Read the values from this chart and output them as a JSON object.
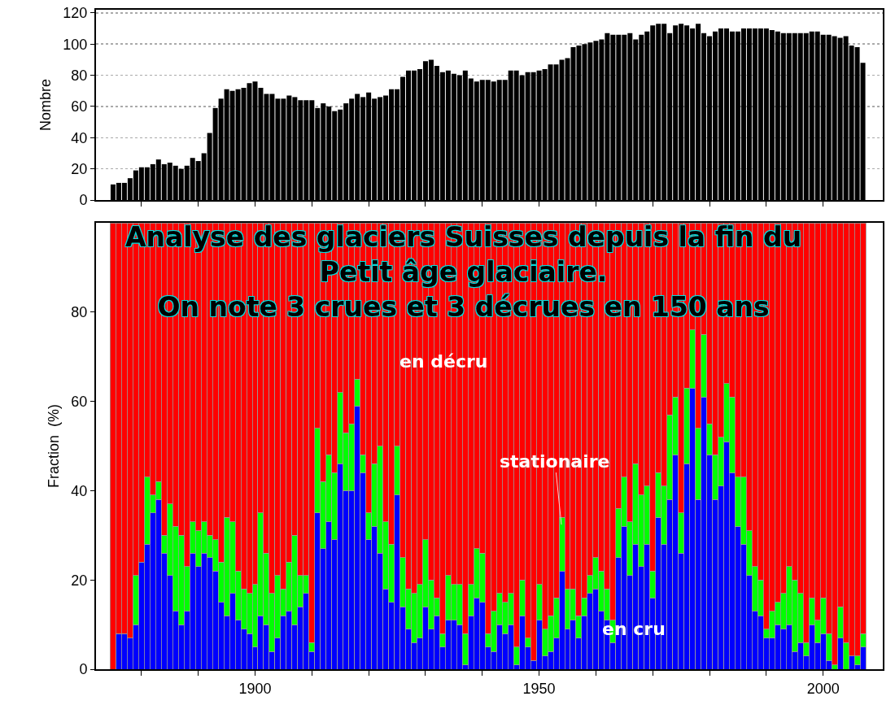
{
  "chart_data": [
    {
      "type": "bar",
      "ylabel": "Nombre",
      "x": [
        1875,
        1876,
        1877,
        1878,
        1879,
        1880,
        1881,
        1882,
        1883,
        1884,
        1885,
        1886,
        1887,
        1888,
        1889,
        1890,
        1891,
        1892,
        1893,
        1894,
        1895,
        1896,
        1897,
        1898,
        1899,
        1900,
        1901,
        1902,
        1903,
        1904,
        1905,
        1906,
        1907,
        1908,
        1909,
        1910,
        1911,
        1912,
        1913,
        1914,
        1915,
        1916,
        1917,
        1918,
        1919,
        1920,
        1921,
        1922,
        1923,
        1924,
        1925,
        1926,
        1927,
        1928,
        1929,
        1930,
        1931,
        1932,
        1933,
        1934,
        1935,
        1936,
        1937,
        1938,
        1939,
        1940,
        1941,
        1942,
        1943,
        1944,
        1945,
        1946,
        1947,
        1948,
        1949,
        1950,
        1951,
        1952,
        1953,
        1954,
        1955,
        1956,
        1957,
        1958,
        1959,
        1960,
        1961,
        1962,
        1963,
        1964,
        1965,
        1966,
        1967,
        1968,
        1969,
        1970,
        1971,
        1972,
        1973,
        1974,
        1975,
        1976,
        1977,
        1978,
        1979,
        1980,
        1981,
        1982,
        1983,
        1984,
        1985,
        1986,
        1987,
        1988,
        1989,
        1990,
        1991,
        1992,
        1993,
        1994,
        1995,
        1996,
        1997,
        1998,
        1999,
        2000,
        2001,
        2002,
        2003,
        2004,
        2005,
        2006,
        2007
      ],
      "values": [
        10,
        11,
        11,
        14,
        19,
        21,
        21,
        23,
        26,
        23,
        24,
        22,
        20,
        22,
        27,
        25,
        30,
        43,
        59,
        65,
        71,
        70,
        71,
        72,
        75,
        76,
        72,
        68,
        68,
        65,
        65,
        67,
        66,
        64,
        64,
        64,
        59,
        62,
        60,
        57,
        58,
        62,
        65,
        68,
        66,
        69,
        65,
        66,
        67,
        71,
        71,
        79,
        83,
        83,
        84,
        89,
        90,
        86,
        82,
        83,
        81,
        80,
        83,
        78,
        76,
        77,
        77,
        76,
        77,
        77,
        83,
        83,
        80,
        82,
        82,
        83,
        84,
        87,
        87,
        90,
        91,
        98,
        99,
        100,
        101,
        102,
        103,
        107,
        106,
        106,
        106,
        107,
        103,
        106,
        108,
        112,
        113,
        113,
        107,
        112,
        113,
        112,
        110,
        113,
        107,
        105,
        108,
        110,
        110,
        108,
        108,
        110,
        110,
        110,
        110,
        110,
        109,
        108,
        107,
        107,
        107,
        107,
        107,
        108,
        108,
        106,
        106,
        105,
        104,
        105,
        99,
        98,
        88
      ],
      "color": "#000000",
      "xlim": [
        1872,
        2010.5
      ],
      "ylim": [
        0,
        122
      ],
      "yticks": [
        0,
        20,
        40,
        60,
        80,
        100,
        120
      ],
      "xticks": [
        {
          "value": 1880,
          "label": null
        },
        {
          "value": 1890,
          "label": null
        },
        {
          "value": 1900,
          "label": null
        },
        {
          "value": 1910,
          "label": null
        },
        {
          "value": 1920,
          "label": null
        },
        {
          "value": 1930,
          "label": null
        },
        {
          "value": 1940,
          "label": null
        },
        {
          "value": 1950,
          "label": null
        },
        {
          "value": 1960,
          "label": null
        },
        {
          "value": 1970,
          "label": null
        },
        {
          "value": 1980,
          "label": null
        },
        {
          "value": 1990,
          "label": null
        },
        {
          "value": 2000,
          "label": null
        }
      ],
      "tick_labels": "y",
      "grid": "y"
    },
    {
      "type": "bar",
      "stacked": true,
      "title": "Analyse des glaciers Suisses depuis la fin du\nPetit âge glaciaire.\nOn note 3 crues et 3 décrues en 150 ans",
      "ylabel": "Fraction  (%)",
      "x": [
        1875,
        1876,
        1877,
        1878,
        1879,
        1880,
        1881,
        1882,
        1883,
        1884,
        1885,
        1886,
        1887,
        1888,
        1889,
        1890,
        1891,
        1892,
        1893,
        1894,
        1895,
        1896,
        1897,
        1898,
        1899,
        1900,
        1901,
        1902,
        1903,
        1904,
        1905,
        1906,
        1907,
        1908,
        1909,
        1910,
        1911,
        1912,
        1913,
        1914,
        1915,
        1916,
        1917,
        1918,
        1919,
        1920,
        1921,
        1922,
        1923,
        1924,
        1925,
        1926,
        1927,
        1928,
        1929,
        1930,
        1931,
        1932,
        1933,
        1934,
        1935,
        1936,
        1937,
        1938,
        1939,
        1940,
        1941,
        1942,
        1943,
        1944,
        1945,
        1946,
        1947,
        1948,
        1949,
        1950,
        1951,
        1952,
        1953,
        1954,
        1955,
        1956,
        1957,
        1958,
        1959,
        1960,
        1961,
        1962,
        1963,
        1964,
        1965,
        1966,
        1967,
        1968,
        1969,
        1970,
        1971,
        1972,
        1973,
        1974,
        1975,
        1976,
        1977,
        1978,
        1979,
        1980,
        1981,
        1982,
        1983,
        1984,
        1985,
        1986,
        1987,
        1988,
        1989,
        1990,
        1991,
        1992,
        1993,
        1994,
        1995,
        1996,
        1997,
        1998,
        1999,
        2000,
        2001,
        2002,
        2003,
        2004,
        2005,
        2006,
        2007
      ],
      "series": [
        {
          "name": "en cru",
          "color": "#0000ff",
          "values": [
            0,
            8,
            8,
            7,
            10,
            24,
            28,
            35,
            38,
            26,
            21,
            13,
            10,
            13,
            26,
            23,
            26,
            25,
            22,
            15,
            12,
            17,
            11,
            9,
            8,
            5,
            12,
            10,
            4,
            7,
            12,
            13,
            10,
            14,
            17,
            4,
            35,
            27,
            33,
            29,
            46,
            40,
            40,
            59,
            44,
            29,
            32,
            26,
            18,
            15,
            39,
            14,
            9,
            6,
            7,
            14,
            9,
            12,
            5,
            11,
            11,
            10,
            1,
            12,
            16,
            15,
            5,
            4,
            10,
            8,
            10,
            1,
            12,
            5,
            2,
            11,
            3,
            4,
            7,
            22,
            9,
            11,
            7,
            12,
            17,
            18,
            13,
            11,
            6,
            25,
            32,
            21,
            28,
            23,
            28,
            16,
            34,
            28,
            38,
            48,
            26,
            46,
            63,
            38,
            61,
            48,
            38,
            41,
            51,
            44,
            32,
            28,
            21,
            13,
            12,
            7,
            7,
            10,
            9,
            10,
            4,
            6,
            3,
            10,
            6,
            8,
            2,
            0,
            7,
            0,
            3,
            1,
            5
          ]
        },
        {
          "name": "stationaire",
          "color": "#00ff00",
          "values": [
            0,
            0,
            0,
            0,
            11,
            0,
            15,
            4,
            4,
            4,
            16,
            19,
            20,
            10,
            7,
            8,
            7,
            5,
            7,
            9,
            22,
            16,
            11,
            9,
            9,
            14,
            23,
            16,
            13,
            14,
            6,
            11,
            20,
            7,
            4,
            2,
            19,
            15,
            15,
            15,
            16,
            13,
            15,
            6,
            4,
            6,
            14,
            24,
            15,
            13,
            11,
            11,
            9,
            11,
            12,
            15,
            11,
            4,
            3,
            10,
            8,
            9,
            7,
            7,
            11,
            11,
            3,
            9,
            7,
            7,
            7,
            4,
            8,
            2,
            0,
            8,
            6,
            8,
            9,
            12,
            9,
            7,
            5,
            4,
            4,
            7,
            9,
            7,
            5,
            11,
            11,
            12,
            18,
            16,
            13,
            6,
            10,
            13,
            19,
            13,
            9,
            17,
            13,
            16,
            14,
            7,
            10,
            11,
            13,
            17,
            11,
            15,
            10,
            10,
            8,
            2,
            6,
            5,
            8,
            13,
            16,
            11,
            3,
            6,
            5,
            8,
            6,
            1,
            7,
            6,
            0,
            2,
            3
          ]
        },
        {
          "name": "en décru",
          "color": "#ff0000",
          "values": [
            100,
            92,
            92,
            93,
            79,
            76,
            57,
            61,
            58,
            70,
            63,
            68,
            70,
            77,
            67,
            69,
            67,
            70,
            71,
            76,
            66,
            67,
            78,
            82,
            83,
            81,
            65,
            74,
            83,
            79,
            82,
            76,
            70,
            79,
            79,
            94,
            46,
            58,
            52,
            56,
            38,
            47,
            45,
            35,
            52,
            65,
            54,
            50,
            67,
            72,
            50,
            75,
            82,
            83,
            81,
            71,
            80,
            84,
            92,
            79,
            81,
            81,
            92,
            81,
            73,
            74,
            92,
            87,
            83,
            85,
            83,
            95,
            80,
            93,
            98,
            81,
            91,
            88,
            84,
            66,
            82,
            82,
            88,
            84,
            79,
            75,
            78,
            82,
            89,
            64,
            57,
            67,
            54,
            61,
            59,
            78,
            56,
            59,
            43,
            39,
            65,
            37,
            24,
            46,
            25,
            45,
            52,
            48,
            36,
            39,
            57,
            57,
            69,
            77,
            80,
            91,
            87,
            85,
            83,
            77,
            80,
            83,
            94,
            84,
            89,
            84,
            92,
            99,
            86,
            94,
            97,
            97,
            92
          ]
        }
      ],
      "xlim": [
        1872,
        2010.5
      ],
      "ylim": [
        0,
        100
      ],
      "yticks": [
        0,
        20,
        40,
        60,
        80
      ],
      "xticks": [
        {
          "value": 1880,
          "label": null
        },
        {
          "value": 1890,
          "label": null
        },
        1900,
        {
          "value": 1910,
          "label": null
        },
        {
          "value": 1920,
          "label": null
        },
        {
          "value": 1930,
          "label": null
        },
        {
          "value": 1940,
          "label": null
        },
        1950,
        {
          "value": 1960,
          "label": null
        },
        {
          "value": 1970,
          "label": null
        },
        {
          "value": 1980,
          "label": null
        },
        {
          "value": 1990,
          "label": null
        },
        2000
      ]
    }
  ]
}
